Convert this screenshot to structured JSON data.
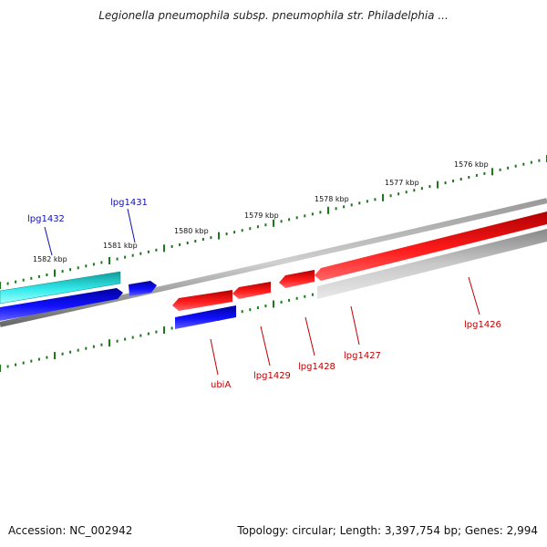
{
  "title": "Legionella pneumophila subsp. pneumophila str. Philadelphia ...",
  "footer": {
    "accession": "Accession: NC_002942",
    "topology": "Topology: circular; Length: 3,397,754 bp; Genes: 2,994"
  },
  "scale_labels": [
    "1582 kbp",
    "1581 kbp",
    "1580 kbp",
    "1579 kbp",
    "1578 kbp",
    "1577 kbp",
    "1576 kbp"
  ],
  "gene_labels": [
    {
      "id": "lpg1432",
      "text": "lpg1432",
      "color": "#1010b0"
    },
    {
      "id": "lpg1431",
      "text": "lpg1431",
      "color": "#1010b0"
    },
    {
      "id": "ubiA",
      "text": "ubiA",
      "color": "#c00000"
    },
    {
      "id": "lpg1429",
      "text": "lpg1429",
      "color": "#c00000"
    },
    {
      "id": "lpg1428",
      "text": "lpg1428",
      "color": "#c00000"
    },
    {
      "id": "lpg1427",
      "text": "lpg1427",
      "color": "#c00000"
    },
    {
      "id": "lpg1426",
      "text": "lpg1426",
      "color": "#c00000"
    }
  ],
  "colors": {
    "backbone": "#808080",
    "tick": "#1a7a1a",
    "cyan": "#33e6e6",
    "blue": "#0a0ae0",
    "red": "#e81010",
    "gray": "#b8b8b8"
  }
}
